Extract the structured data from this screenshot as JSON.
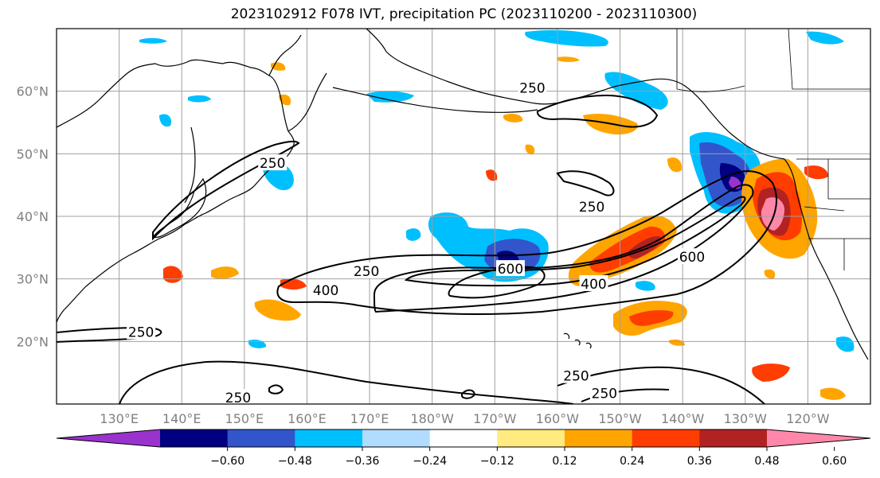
{
  "title": "2023102912 F078 IVT, precipitation PC (2023110200 - 2023110300)",
  "map": {
    "lon_range": [
      120,
      250
    ],
    "lat_range": [
      10,
      70
    ],
    "lon_ticks": [
      {
        "value": 130,
        "label": "130°E"
      },
      {
        "value": 140,
        "label": "140°E"
      },
      {
        "value": 150,
        "label": "150°E"
      },
      {
        "value": 160,
        "label": "160°E"
      },
      {
        "value": 170,
        "label": "170°E"
      },
      {
        "value": 180,
        "label": "180°W"
      },
      {
        "value": 190,
        "label": "170°W"
      },
      {
        "value": 200,
        "label": "160°W"
      },
      {
        "value": 210,
        "label": "150°W"
      },
      {
        "value": 220,
        "label": "140°W"
      },
      {
        "value": 230,
        "label": "130°W"
      },
      {
        "value": 240,
        "label": "120°W"
      }
    ],
    "lat_ticks": [
      {
        "value": 20,
        "label": "20°N"
      },
      {
        "value": 30,
        "label": "30°N"
      },
      {
        "value": 40,
        "label": "40°N"
      },
      {
        "value": 50,
        "label": "50°N"
      },
      {
        "value": 60,
        "label": "60°N"
      }
    ],
    "ivt_contour_labels": [
      {
        "text": "250",
        "lon": 196,
        "lat": 60.5
      },
      {
        "text": "250",
        "lon": 154.5,
        "lat": 48.5
      },
      {
        "text": "250",
        "lon": 205.5,
        "lat": 41.5
      },
      {
        "text": "250",
        "lon": 169.5,
        "lat": 31.2
      },
      {
        "text": "400",
        "lon": 163,
        "lat": 28.2
      },
      {
        "text": "600",
        "lon": 192.5,
        "lat": 31.6
      },
      {
        "text": "400",
        "lon": 205.8,
        "lat": 29.2
      },
      {
        "text": "600",
        "lon": 221.5,
        "lat": 33.5
      },
      {
        "text": "250",
        "lon": 133.5,
        "lat": 21.5
      },
      {
        "text": "250",
        "lon": 203,
        "lat": 14.5
      },
      {
        "text": "250",
        "lon": 207.5,
        "lat": 11.7
      },
      {
        "text": "250",
        "lon": 149,
        "lat": 11
      }
    ]
  },
  "colorbar": {
    "colors": [
      "#9933cc",
      "#000080",
      "#3355cc",
      "#00bfff",
      "#b0dcff",
      "#ffffff",
      "#ffeb80",
      "#ffa500",
      "#ff3d00",
      "#b22222",
      "#ff88aa"
    ],
    "tick_labels": [
      "−0.60",
      "−0.48",
      "−0.36",
      "−0.24",
      "−0.12",
      "0.12",
      "0.24",
      "0.36",
      "0.48",
      "0.60"
    ]
  }
}
